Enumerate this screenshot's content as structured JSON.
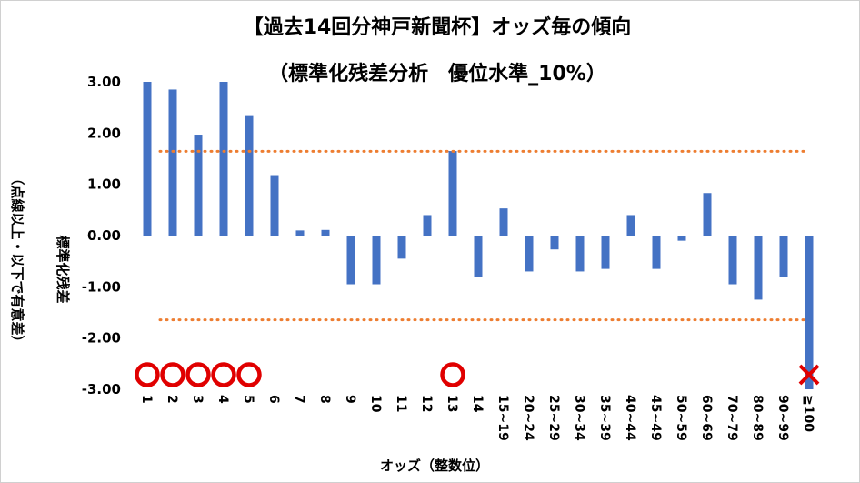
{
  "chart_data": {
    "type": "bar",
    "title": "【過去14回分神戸新聞杯】オッズ毎の傾向",
    "subtitle": "（標準化残差分析　優位水準_10%）",
    "xlabel": "オッズ（整数位）",
    "ylabel": "標準化残差",
    "ylabel_note": "（点線以上・以下で有意差）",
    "ylim": [
      -3.0,
      3.0
    ],
    "yticks": [
      "3.00",
      "2.00",
      "1.00",
      "0.00",
      "-1.00",
      "-2.00",
      "-3.00"
    ],
    "categories": [
      "1",
      "2",
      "3",
      "4",
      "5",
      "6",
      "7",
      "8",
      "9",
      "10",
      "11",
      "12",
      "13",
      "14",
      "15~19",
      "20~24",
      "25~29",
      "30~34",
      "35~39",
      "40~44",
      "45~49",
      "50~59",
      "60~69",
      "70~79",
      "80~89",
      "90~99",
      "≧100"
    ],
    "values": [
      3.0,
      2.85,
      1.97,
      3.0,
      2.35,
      1.18,
      0.1,
      0.11,
      -0.95,
      -0.95,
      -0.45,
      0.4,
      1.65,
      -0.8,
      0.53,
      -0.7,
      -0.27,
      -0.7,
      -0.65,
      0.4,
      -0.65,
      -0.1,
      0.83,
      -0.95,
      -1.25,
      -0.8,
      -3.0
    ],
    "thresholds": [
      1.645,
      -1.645
    ],
    "bar_color": "#4472C4",
    "threshold_color": "#ED7D31",
    "circle_color": "#E00000",
    "cross_color": "#E00000",
    "circle_marks": [
      "1",
      "2",
      "3",
      "4",
      "5",
      "13"
    ],
    "cross_marks": [
      "≧100"
    ],
    "grid": false,
    "legend": "none"
  }
}
